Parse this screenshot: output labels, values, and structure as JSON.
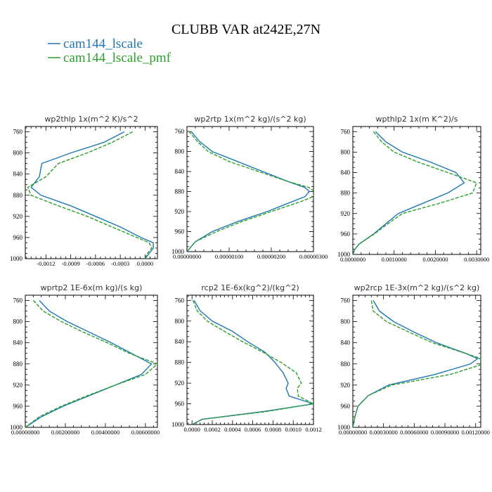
{
  "figure": {
    "title": "CLUBB VAR at242E,27N",
    "legend": [
      {
        "label": "cam144_lscale",
        "color": "#1f77b4"
      },
      {
        "label": "cam144_lscale_pmf",
        "color": "#2ca02c"
      }
    ]
  },
  "chart_data": [
    {
      "type": "line",
      "title": "wp2thlp   1x(m^2 K)/s^2",
      "xlim": [
        -0.00145,
        0.00015
      ],
      "ylim": [
        1000,
        750
      ],
      "xticks": [
        -0.0012,
        -0.0009,
        -0.0006,
        -0.0003,
        0.0
      ],
      "xtick_labels": [
        "-0.0012",
        "-0.0009",
        "-0.0006",
        "-0.0003",
        "0.0000"
      ],
      "yticks": [
        760,
        800,
        840,
        880,
        920,
        960,
        1000
      ],
      "y": [
        760,
        780,
        800,
        820,
        845,
        865,
        880,
        900,
        920,
        940,
        960,
        970,
        980,
        990,
        1000
      ],
      "series": [
        {
          "name": "cam144_lscale",
          "x": [
            -0.00025,
            -0.0005,
            -0.0009,
            -0.00125,
            -0.00128,
            -0.00138,
            -0.00126,
            -0.0009,
            -0.0006,
            -0.0003,
            -5e-05,
            0.0001,
            0.0001,
            5e-05,
            0.0
          ]
        },
        {
          "name": "cam144_lscale_pmf",
          "x": [
            -0.00015,
            -0.0004,
            -0.0007,
            -0.00105,
            -0.0012,
            -0.00142,
            -0.00138,
            -0.00105,
            -0.0007,
            -0.0004,
            -0.0001,
            5e-05,
            8e-05,
            3e-05,
            0.0
          ]
        }
      ]
    },
    {
      "type": "line",
      "title": "wp2rtp   1x(m^2 kg)/(s^2 kg)",
      "xlim": [
        0.0,
        3e-06
      ],
      "ylim": [
        1000,
        750
      ],
      "xticks": [
        0.0,
        1e-06,
        2e-06,
        3e-06
      ],
      "xtick_labels": [
        "0.00000000",
        "0.00000100",
        "0.00000200",
        "0.00000300"
      ],
      "yticks": [
        760,
        800,
        840,
        880,
        920,
        960,
        1000
      ],
      "y": [
        760,
        780,
        800,
        820,
        840,
        860,
        872,
        880,
        890,
        900,
        920,
        940,
        960,
        980,
        1000
      ],
      "series": [
        {
          "name": "cam144_lscale",
          "x": [
            1e-07,
            3e-07,
            6e-07,
            1.2e-06,
            1.8e-06,
            2.4e-06,
            2.8e-06,
            2.9e-06,
            2.8e-06,
            2.5e-06,
            1.9e-06,
            1.2e-06,
            6e-07,
            2e-07,
            0.0
          ]
        },
        {
          "name": "cam144_lscale_pmf",
          "x": [
            5e-08,
            2.5e-07,
            5e-07,
            1e-06,
            1.7e-06,
            2.4e-06,
            2.9e-06,
            3.02e-06,
            3e-06,
            2.7e-06,
            2e-06,
            1.3e-06,
            7e-07,
            2e-07,
            0.0
          ]
        }
      ]
    },
    {
      "type": "line",
      "title": "wpthlp2   1x(m K^2)/s",
      "xlim": [
        0.0,
        0.0031
      ],
      "ylim": [
        1000,
        750
      ],
      "xticks": [
        0.0,
        0.001,
        0.002,
        0.003
      ],
      "xtick_labels": [
        "0.0000000",
        "0.0010000",
        "0.0020000",
        "0.0030000"
      ],
      "yticks": [
        760,
        800,
        840,
        880,
        920,
        960,
        1000
      ],
      "y": [
        760,
        780,
        800,
        820,
        840,
        860,
        880,
        900,
        920,
        940,
        960,
        980,
        990,
        1000
      ],
      "series": [
        {
          "name": "cam144_lscale",
          "x": [
            0.00055,
            0.0008,
            0.0012,
            0.0019,
            0.0025,
            0.0027,
            0.0023,
            0.0017,
            0.0011,
            0.0008,
            0.0005,
            0.00015,
            5e-05,
            0.0
          ]
        },
        {
          "name": "cam144_lscale_pmf",
          "x": [
            0.0005,
            0.0007,
            0.001,
            0.0016,
            0.0023,
            0.003,
            0.0029,
            0.0021,
            0.0012,
            0.00085,
            0.00052,
            0.00015,
            5e-05,
            0.0
          ]
        }
      ]
    },
    {
      "type": "line",
      "title": "wprtp2   1E-6x(m kg)/(s kg)",
      "xlim": [
        0.0,
        0.0066
      ],
      "ylim": [
        1000,
        750
      ],
      "xticks": [
        0.0,
        0.002,
        0.004,
        0.006
      ],
      "xtick_labels": [
        "0.00000000",
        "0.00200000",
        "0.00400000",
        "0.00600000"
      ],
      "yticks": [
        760,
        800,
        840,
        880,
        920,
        960,
        1000
      ],
      "y": [
        760,
        780,
        800,
        820,
        840,
        860,
        880,
        900,
        920,
        940,
        960,
        980,
        1000
      ],
      "series": [
        {
          "name": "cam144_lscale",
          "x": [
            0.0007,
            0.0012,
            0.0021,
            0.0032,
            0.0043,
            0.0053,
            0.0063,
            0.0058,
            0.0045,
            0.0032,
            0.0019,
            0.0008,
            0.0
          ]
        },
        {
          "name": "cam144_lscale_pmf",
          "x": [
            0.0004,
            0.0009,
            0.0018,
            0.0029,
            0.0041,
            0.0052,
            0.0066,
            0.006,
            0.0045,
            0.0031,
            0.0018,
            0.0007,
            0.0
          ]
        }
      ]
    },
    {
      "type": "line",
      "title": "rcp2   1E-6x(kg^2)/(kg^2)",
      "xlim": [
        -5e-05,
        0.0012
      ],
      "ylim": [
        1000,
        750
      ],
      "xticks": [
        0.0,
        0.0002,
        0.0004,
        0.0006,
        0.0008,
        0.001,
        0.0012
      ],
      "xtick_labels": [
        "0.0000",
        "0.0002",
        "0.0004",
        "0.0006",
        "0.0008",
        "0.0010",
        "0.0012"
      ],
      "yticks": [
        760,
        800,
        840,
        880,
        920,
        960,
        1000
      ],
      "y": [
        760,
        780,
        800,
        820,
        840,
        860,
        880,
        900,
        920,
        930,
        945,
        960,
        975,
        990,
        1000
      ],
      "series": [
        {
          "name": "cam144_lscale",
          "x": [
            2e-05,
            8e-05,
            0.0002,
            0.0004,
            0.00055,
            0.00072,
            0.00082,
            0.0009,
            0.00095,
            0.00093,
            0.00096,
            0.0012,
            0.0007,
            0.0001,
            0.0
          ]
        },
        {
          "name": "cam144_lscale_pmf",
          "x": [
            1e-05,
            5e-05,
            0.00015,
            0.00032,
            0.0005,
            0.0007,
            0.00088,
            0.00103,
            0.00108,
            0.00104,
            0.00105,
            0.0012,
            0.00073,
            0.0001,
            0.0
          ]
        }
      ]
    },
    {
      "type": "line",
      "title": "wp2rcp   1E-3x(m^2 kg)/(s^2 kg)",
      "xlim": [
        0.0,
        0.00125
      ],
      "ylim": [
        1000,
        750
      ],
      "xticks": [
        0.0,
        0.0003,
        0.0006,
        0.0009,
        0.0012
      ],
      "xtick_labels": [
        "0.00000000",
        "0.00030000",
        "0.00060000",
        "0.00090000",
        "0.00120000"
      ],
      "yticks": [
        760,
        800,
        840,
        880,
        920,
        960,
        1000
      ],
      "y": [
        760,
        780,
        800,
        820,
        840,
        860,
        870,
        880,
        900,
        920,
        940,
        960,
        980,
        1000
      ],
      "series": [
        {
          "name": "cam144_lscale",
          "x": [
            0.0002,
            0.00026,
            0.0004,
            0.0006,
            0.00082,
            0.0011,
            0.00122,
            0.00115,
            0.0008,
            0.00035,
            0.00015,
            5e-05,
            2e-05,
            0.0
          ]
        },
        {
          "name": "cam144_lscale_pmf",
          "x": [
            0.00018,
            0.0002,
            0.00033,
            0.00055,
            0.00078,
            0.0011,
            0.00125,
            0.00128,
            0.00095,
            0.00038,
            0.00015,
            5e-05,
            2e-05,
            0.0
          ]
        }
      ]
    }
  ]
}
